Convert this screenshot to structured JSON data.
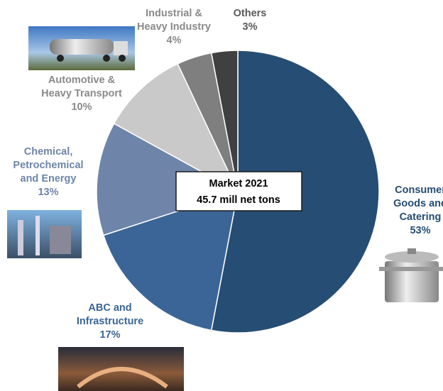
{
  "chart_data": {
    "type": "pie",
    "categories": [
      "Consumer\nGoods and\nCatering",
      "ABC and\nInfrastructure",
      "Chemical,\nPetrochemical\nand Energy",
      "Automotive &\nHeavy Transport",
      "Industrial &\nHeavy Industry",
      "Others"
    ],
    "values": [
      53,
      17,
      13,
      10,
      4,
      3
    ],
    "value_labels": [
      "53%",
      "17%",
      "13%",
      "10%",
      "4%",
      "3%"
    ],
    "colors": [
      "#264d73",
      "#3b6596",
      "#6e85a9",
      "#c9c9c9",
      "#7f7f7f",
      "#404040"
    ],
    "annotations": [
      "Market 2021",
      "45.7 mill net tons"
    ]
  }
}
